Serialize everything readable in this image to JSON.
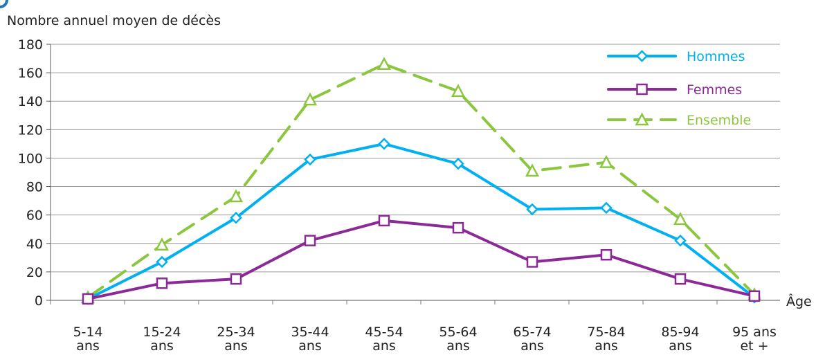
{
  "chart_data": {
    "type": "line",
    "title": "",
    "ylabel": "Nombre annuel moyen de décès",
    "xlabel": "Âge",
    "ylim": [
      0,
      180
    ],
    "yticks": [
      0,
      20,
      40,
      60,
      80,
      100,
      120,
      140,
      160,
      180
    ],
    "grid": true,
    "legend_position": "top-right",
    "categories": [
      [
        "5-14",
        "ans"
      ],
      [
        "15-24",
        "ans"
      ],
      [
        "25-34",
        "ans"
      ],
      [
        "35-44",
        "ans"
      ],
      [
        "45-54",
        "ans"
      ],
      [
        "55-64",
        "ans"
      ],
      [
        "65-74",
        "ans"
      ],
      [
        "75-84",
        "ans"
      ],
      [
        "85-94",
        "ans"
      ],
      [
        "95 ans",
        "et +"
      ]
    ],
    "series": [
      {
        "name": "Hommes",
        "color": "#00b0f0",
        "marker": "diamond",
        "dash": "solid",
        "values": [
          1,
          27,
          58,
          99,
          110,
          96,
          64,
          65,
          42,
          2
        ]
      },
      {
        "name": "Femmes",
        "color": "#8b2a96",
        "marker": "square",
        "dash": "solid",
        "values": [
          1,
          12,
          15,
          42,
          56,
          51,
          27,
          32,
          15,
          3
        ]
      },
      {
        "name": "Ensemble",
        "color": "#8cc63f",
        "marker": "triangle",
        "dash": "dashed",
        "values": [
          2,
          39,
          73,
          141,
          166,
          147,
          91,
          97,
          57,
          4
        ]
      }
    ]
  }
}
